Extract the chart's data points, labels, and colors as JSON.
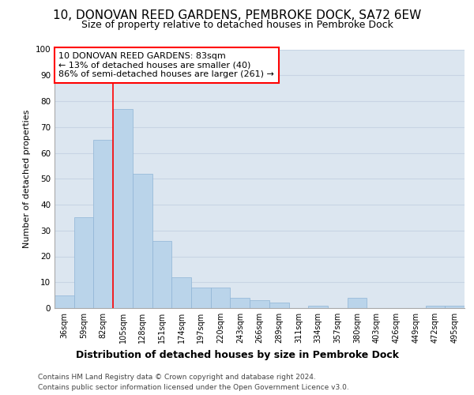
{
  "title1": "10, DONOVAN REED GARDENS, PEMBROKE DOCK, SA72 6EW",
  "title2": "Size of property relative to detached houses in Pembroke Dock",
  "xlabel": "Distribution of detached houses by size in Pembroke Dock",
  "ylabel": "Number of detached properties",
  "categories": [
    "36sqm",
    "59sqm",
    "82sqm",
    "105sqm",
    "128sqm",
    "151sqm",
    "174sqm",
    "197sqm",
    "220sqm",
    "243sqm",
    "266sqm",
    "289sqm",
    "311sqm",
    "334sqm",
    "357sqm",
    "380sqm",
    "403sqm",
    "426sqm",
    "449sqm",
    "472sqm",
    "495sqm"
  ],
  "values": [
    5,
    35,
    65,
    77,
    52,
    26,
    12,
    8,
    8,
    4,
    3,
    2,
    0,
    1,
    0,
    4,
    0,
    0,
    0,
    1,
    1
  ],
  "bar_color": "#bad4ea",
  "bar_edgecolor": "#8fb4d6",
  "grid_color": "#c8d4e4",
  "background_color": "#dce6f0",
  "annotation_box_text": "10 DONOVAN REED GARDENS: 83sqm\n← 13% of detached houses are smaller (40)\n86% of semi-detached houses are larger (261) →",
  "redline_index": 2,
  "ylim": [
    0,
    100
  ],
  "yticks": [
    0,
    10,
    20,
    30,
    40,
    50,
    60,
    70,
    80,
    90,
    100
  ],
  "footer1": "Contains HM Land Registry data © Crown copyright and database right 2024.",
  "footer2": "Contains public sector information licensed under the Open Government Licence v3.0.",
  "title1_fontsize": 11,
  "title2_fontsize": 9,
  "xlabel_fontsize": 9,
  "ylabel_fontsize": 8,
  "tick_fontsize": 7,
  "footer_fontsize": 6.5,
  "ann_fontsize": 8
}
